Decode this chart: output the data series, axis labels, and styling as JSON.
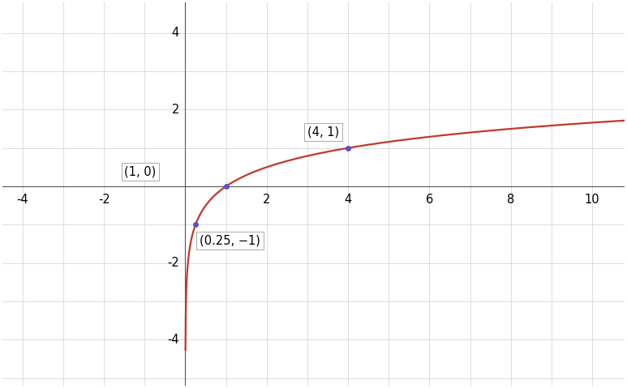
{
  "title": "",
  "xlim": [
    -4.5,
    10.8
  ],
  "ylim": [
    -5.2,
    4.8
  ],
  "xticks": [
    -4,
    -2,
    2,
    4,
    6,
    8,
    10
  ],
  "yticks": [
    -4,
    -2,
    2,
    4
  ],
  "curve_color": "#c0392b",
  "curve_linewidth": 1.6,
  "point_color": "#5b4fcf",
  "point_size": 5,
  "points": [
    [
      0.25,
      -1
    ],
    [
      1,
      0
    ],
    [
      4,
      1
    ]
  ],
  "labels": [
    "(0.25, −1)",
    "(1, 0)",
    "(4, 1)"
  ],
  "grid_color": "#d8d8d8",
  "grid_linewidth": 0.6,
  "background_color": "#ffffff",
  "axis_color": "#555555",
  "axis_linewidth": 0.8,
  "log_base": 4,
  "x_range_start": 0.0005,
  "x_range_end": 10.8,
  "tick_fontsize": 10.5
}
